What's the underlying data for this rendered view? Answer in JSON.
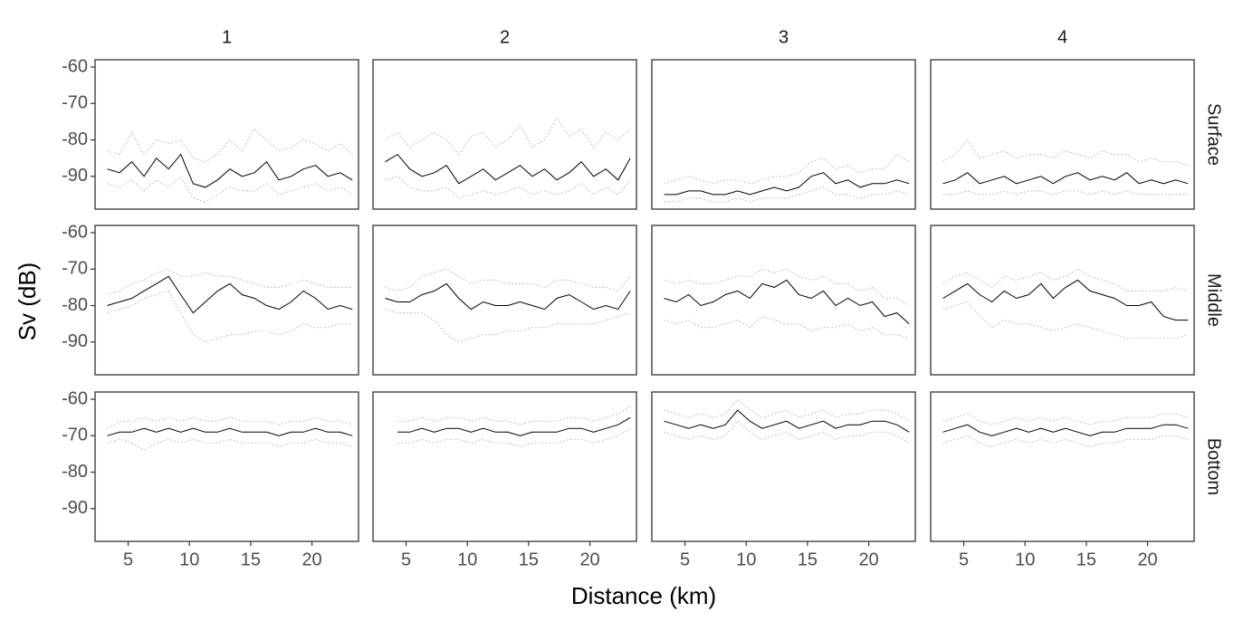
{
  "chart_data": {
    "type": "line",
    "x_label": "Distance (km)",
    "y_label": "Sv (dB)",
    "column_labels": [
      "1",
      "2",
      "3",
      "4"
    ],
    "row_labels": [
      "Surface",
      "Middle",
      "Bottom"
    ],
    "xlim": [
      2.3,
      23.8
    ],
    "ylim": [
      -99,
      -58
    ],
    "xticks": [
      5,
      10,
      15,
      20
    ],
    "yticks": [
      -60,
      -70,
      -80,
      -90
    ],
    "x": [
      3.3,
      4.3,
      5.3,
      6.3,
      7.3,
      8.3,
      9.3,
      10.3,
      11.3,
      12.3,
      13.3,
      14.3,
      15.3,
      16.3,
      17.3,
      18.3,
      19.3,
      20.3,
      21.3,
      22.3,
      23.3
    ],
    "panels": [
      {
        "series": [
          {
            "color": "#c8c8c8",
            "dash": true,
            "values": [
              -83,
              -84,
              -78,
              -84,
              -80,
              -81,
              -80,
              -85,
              -86,
              -84,
              -80,
              -83,
              -77,
              -80,
              -83,
              -82,
              -80,
              -81,
              -83,
              -81,
              -84
            ]
          },
          {
            "color": "#c8c8c8",
            "dash": true,
            "values": [
              -92,
              -93,
              -91,
              -94,
              -91,
              -93,
              -90,
              -96,
              -97,
              -95,
              -93,
              -94,
              -94,
              -92,
              -95,
              -94,
              -93,
              -92,
              -94,
              -93,
              -95
            ]
          },
          {
            "color": "#000000",
            "dash": false,
            "values": [
              -88,
              -89,
              -86,
              -90,
              -85,
              -88,
              -84,
              -92,
              -93,
              -91,
              -88,
              -90,
              -89,
              -86,
              -91,
              -90,
              -88,
              -87,
              -90,
              -89,
              -91
            ]
          }
        ]
      },
      {
        "series": [
          {
            "color": "#c8c8c8",
            "dash": true,
            "values": [
              -80,
              -78,
              -82,
              -80,
              -78,
              -80,
              -84,
              -79,
              -78,
              -82,
              -80,
              -76,
              -82,
              -80,
              -74,
              -79,
              -77,
              -82,
              -78,
              -80,
              -77
            ]
          },
          {
            "color": "#c8c8c8",
            "dash": true,
            "values": [
              -91,
              -90,
              -93,
              -94,
              -94,
              -93,
              -96,
              -95,
              -94,
              -95,
              -94,
              -93,
              -95,
              -94,
              -95,
              -94,
              -92,
              -95,
              -93,
              -95,
              -91
            ]
          },
          {
            "color": "#000000",
            "dash": false,
            "values": [
              -86,
              -84,
              -88,
              -90,
              -89,
              -87,
              -92,
              -90,
              -88,
              -91,
              -89,
              -87,
              -90,
              -88,
              -91,
              -89,
              -86,
              -90,
              -88,
              -91,
              -85
            ]
          }
        ]
      },
      {
        "series": [
          {
            "color": "#c8c8c8",
            "dash": true,
            "values": [
              -92,
              -91,
              -90,
              -91,
              -92,
              -91,
              -91,
              -92,
              -91,
              -90,
              -90,
              -89,
              -86,
              -85,
              -88,
              -87,
              -89,
              -88,
              -88,
              -84,
              -86
            ]
          },
          {
            "color": "#c8c8c8",
            "dash": true,
            "values": [
              -97,
              -97,
              -96,
              -96,
              -97,
              -97,
              -96,
              -97,
              -96,
              -96,
              -96,
              -95,
              -94,
              -93,
              -95,
              -95,
              -96,
              -95,
              -95,
              -94,
              -95
            ]
          },
          {
            "color": "#000000",
            "dash": false,
            "values": [
              -95,
              -95,
              -94,
              -94,
              -95,
              -95,
              -94,
              -95,
              -94,
              -93,
              -94,
              -93,
              -90,
              -89,
              -92,
              -91,
              -93,
              -92,
              -92,
              -91,
              -92
            ]
          }
        ]
      },
      {
        "series": [
          {
            "color": "#c8c8c8",
            "dash": true,
            "values": [
              -86,
              -84,
              -80,
              -85,
              -84,
              -83,
              -85,
              -84,
              -84,
              -85,
              -83,
              -84,
              -85,
              -83,
              -84,
              -84,
              -86,
              -85,
              -86,
              -86,
              -87
            ]
          },
          {
            "color": "#c8c8c8",
            "dash": true,
            "values": [
              -95,
              -95,
              -94,
              -95,
              -95,
              -94,
              -95,
              -94,
              -94,
              -95,
              -94,
              -94,
              -95,
              -94,
              -95,
              -94,
              -95,
              -95,
              -95,
              -95,
              -95
            ]
          },
          {
            "color": "#000000",
            "dash": false,
            "values": [
              -92,
              -91,
              -89,
              -92,
              -91,
              -90,
              -92,
              -91,
              -90,
              -92,
              -90,
              -89,
              -91,
              -90,
              -91,
              -89,
              -92,
              -91,
              -92,
              -91,
              -92
            ]
          }
        ]
      },
      {
        "series": [
          {
            "color": "#c8c8c8",
            "dash": true,
            "values": [
              -77,
              -76,
              -74,
              -73,
              -71,
              -70,
              -72,
              -72,
              -71,
              -72,
              -72,
              -73,
              -74,
              -75,
              -75,
              -74,
              -73,
              -74,
              -75,
              -75,
              -75
            ]
          },
          {
            "color": "#c8c8c8",
            "dash": true,
            "values": [
              -82,
              -81,
              -80,
              -78,
              -77,
              -76,
              -82,
              -88,
              -90,
              -89,
              -88,
              -88,
              -87,
              -87,
              -88,
              -87,
              -85,
              -86,
              -86,
              -85,
              -85
            ]
          },
          {
            "color": "#000000",
            "dash": false,
            "values": [
              -80,
              -79,
              -78,
              -76,
              -74,
              -72,
              -77,
              -82,
              -79,
              -76,
              -74,
              -77,
              -78,
              -80,
              -81,
              -79,
              -76,
              -78,
              -81,
              -80,
              -81
            ]
          }
        ]
      },
      {
        "series": [
          {
            "color": "#c8c8c8",
            "dash": true,
            "values": [
              -75,
              -76,
              -75,
              -72,
              -71,
              -70,
              -72,
              -74,
              -73,
              -73,
              -74,
              -74,
              -74,
              -75,
              -73,
              -73,
              -74,
              -75,
              -75,
              -76,
              -72
            ]
          },
          {
            "color": "#c8c8c8",
            "dash": true,
            "values": [
              -81,
              -82,
              -82,
              -82,
              -84,
              -88,
              -90,
              -89,
              -88,
              -88,
              -87,
              -87,
              -86,
              -86,
              -85,
              -85,
              -85,
              -85,
              -84,
              -83,
              -82
            ]
          },
          {
            "color": "#000000",
            "dash": false,
            "values": [
              -78,
              -79,
              -79,
              -77,
              -76,
              -74,
              -78,
              -81,
              -79,
              -80,
              -80,
              -79,
              -80,
              -81,
              -78,
              -77,
              -79,
              -81,
              -80,
              -81,
              -76
            ]
          }
        ]
      },
      {
        "series": [
          {
            "color": "#c8c8c8",
            "dash": true,
            "values": [
              -73,
              -74,
              -73,
              -74,
              -74,
              -73,
              -72,
              -72,
              -70,
              -71,
              -70,
              -72,
              -73,
              -72,
              -74,
              -74,
              -76,
              -75,
              -78,
              -78,
              -80
            ]
          },
          {
            "color": "#c8c8c8",
            "dash": true,
            "values": [
              -84,
              -85,
              -84,
              -86,
              -86,
              -85,
              -84,
              -86,
              -83,
              -84,
              -85,
              -85,
              -87,
              -86,
              -86,
              -85,
              -87,
              -86,
              -88,
              -88,
              -89
            ]
          },
          {
            "color": "#000000",
            "dash": false,
            "values": [
              -78,
              -79,
              -77,
              -80,
              -79,
              -77,
              -76,
              -78,
              -74,
              -75,
              -73,
              -77,
              -78,
              -76,
              -80,
              -78,
              -80,
              -79,
              -83,
              -82,
              -85
            ]
          }
        ]
      },
      {
        "series": [
          {
            "color": "#c8c8c8",
            "dash": true,
            "values": [
              -74,
              -72,
              -71,
              -73,
              -75,
              -72,
              -73,
              -72,
              -71,
              -73,
              -72,
              -70,
              -72,
              -73,
              -74,
              -76,
              -76,
              -76,
              -76,
              -75,
              -76
            ]
          },
          {
            "color": "#c8c8c8",
            "dash": true,
            "values": [
              -81,
              -80,
              -79,
              -83,
              -86,
              -84,
              -85,
              -85,
              -86,
              -87,
              -86,
              -85,
              -86,
              -87,
              -88,
              -89,
              -89,
              -89,
              -89,
              -89,
              -88
            ]
          },
          {
            "color": "#000000",
            "dash": false,
            "values": [
              -78,
              -76,
              -74,
              -77,
              -79,
              -76,
              -78,
              -77,
              -74,
              -78,
              -75,
              -73,
              -76,
              -77,
              -78,
              -80,
              -80,
              -79,
              -83,
              -84,
              -84
            ]
          }
        ]
      },
      {
        "series": [
          {
            "color": "#c8c8c8",
            "dash": true,
            "values": [
              -68,
              -66,
              -66,
              -65,
              -66,
              -65,
              -66,
              -65,
              -66,
              -66,
              -65,
              -66,
              -66,
              -66,
              -67,
              -66,
              -66,
              -65,
              -66,
              -66,
              -67
            ]
          },
          {
            "color": "#c8c8c8",
            "dash": true,
            "values": [
              -72,
              -71,
              -72,
              -74,
              -72,
              -71,
              -72,
              -71,
              -72,
              -72,
              -71,
              -72,
              -72,
              -72,
              -73,
              -72,
              -72,
              -71,
              -72,
              -72,
              -73
            ]
          },
          {
            "color": "#000000",
            "dash": false,
            "values": [
              -70,
              -69,
              -69,
              -68,
              -69,
              -68,
              -69,
              -68,
              -69,
              -69,
              -68,
              -69,
              -69,
              -69,
              -70,
              -69,
              -69,
              -68,
              -69,
              -69,
              -70
            ]
          }
        ]
      },
      {
        "series": [
          {
            "color": "#c8c8c8",
            "dash": true,
            "values": [
              null,
              -66,
              -66,
              -65,
              -66,
              -65,
              -65,
              -66,
              -65,
              -66,
              -66,
              -67,
              -66,
              -66,
              -66,
              -65,
              -65,
              -66,
              -65,
              -64,
              -62
            ]
          },
          {
            "color": "#c8c8c8",
            "dash": true,
            "values": [
              null,
              -72,
              -72,
              -71,
              -72,
              -71,
              -71,
              -72,
              -71,
              -72,
              -72,
              -73,
              -72,
              -72,
              -72,
              -71,
              -71,
              -72,
              -71,
              -70,
              -68
            ]
          },
          {
            "color": "#000000",
            "dash": false,
            "values": [
              null,
              -69,
              -69,
              -68,
              -69,
              -68,
              -68,
              -69,
              -68,
              -69,
              -69,
              -70,
              -69,
              -69,
              -69,
              -68,
              -68,
              -69,
              -68,
              -67,
              -65
            ]
          }
        ]
      },
      {
        "series": [
          {
            "color": "#c8c8c8",
            "dash": true,
            "values": [
              -63,
              -64,
              -65,
              -64,
              -65,
              -64,
              -60,
              -63,
              -65,
              -64,
              -63,
              -65,
              -64,
              -63,
              -65,
              -64,
              -64,
              -63,
              -63,
              -64,
              -66
            ]
          },
          {
            "color": "#c8c8c8",
            "dash": true,
            "values": [
              -69,
              -70,
              -71,
              -70,
              -71,
              -70,
              -66,
              -69,
              -71,
              -70,
              -69,
              -71,
              -70,
              -69,
              -71,
              -70,
              -70,
              -69,
              -69,
              -70,
              -72
            ]
          },
          {
            "color": "#000000",
            "dash": false,
            "values": [
              -66,
              -67,
              -68,
              -67,
              -68,
              -67,
              -63,
              -66,
              -68,
              -67,
              -66,
              -68,
              -67,
              -66,
              -68,
              -67,
              -67,
              -66,
              -66,
              -67,
              -69
            ]
          }
        ]
      },
      {
        "series": [
          {
            "color": "#c8c8c8",
            "dash": true,
            "values": [
              -66,
              -65,
              -64,
              -66,
              -67,
              -66,
              -65,
              -66,
              -65,
              -66,
              -65,
              -66,
              -67,
              -66,
              -66,
              -65,
              -65,
              -65,
              -64,
              -64,
              -65
            ]
          },
          {
            "color": "#c8c8c8",
            "dash": true,
            "values": [
              -72,
              -71,
              -70,
              -72,
              -73,
              -72,
              -71,
              -72,
              -71,
              -72,
              -71,
              -72,
              -73,
              -72,
              -72,
              -71,
              -71,
              -71,
              -70,
              -70,
              -71
            ]
          },
          {
            "color": "#000000",
            "dash": false,
            "values": [
              -69,
              -68,
              -67,
              -69,
              -70,
              -69,
              -68,
              -69,
              -68,
              -69,
              -68,
              -69,
              -70,
              -69,
              -69,
              -68,
              -68,
              -68,
              -67,
              -67,
              -68
            ]
          }
        ]
      }
    ]
  }
}
